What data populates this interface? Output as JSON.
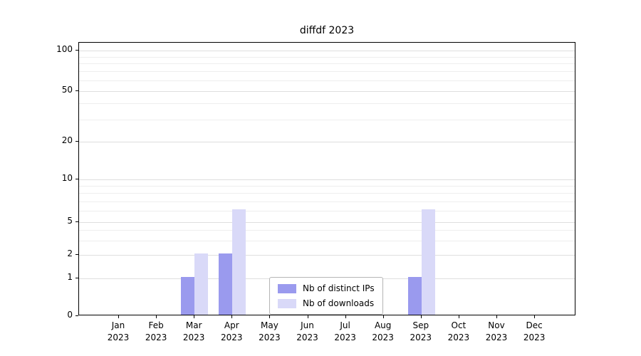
{
  "chart_data": {
    "type": "bar",
    "title": "diffdf 2023",
    "categories": [
      "Jan 2023",
      "Feb 2023",
      "Mar 2023",
      "Apr 2023",
      "May 2023",
      "Jun 2023",
      "Jul 2023",
      "Aug 2023",
      "Sep 2023",
      "Oct 2023",
      "Nov 2023",
      "Dec 2023"
    ],
    "series": [
      {
        "name": "Nb of distinct IPs",
        "color": "#9a9aee",
        "values": [
          0,
          0,
          1,
          2,
          0,
          0,
          0,
          0,
          1,
          0,
          0,
          0
        ]
      },
      {
        "name": "Nb of downloads",
        "color": "#d9d9f8",
        "values": [
          0,
          0,
          2,
          6,
          0,
          0,
          0,
          0,
          6,
          0,
          0,
          0
        ]
      }
    ],
    "yticks": [
      0,
      1,
      2,
      5,
      10,
      20,
      50,
      100
    ],
    "xlabel": "",
    "ylabel": "",
    "ylim": [
      0,
      115
    ],
    "scale": "symlog",
    "grid": true,
    "legend_position": "lower center inside"
  }
}
